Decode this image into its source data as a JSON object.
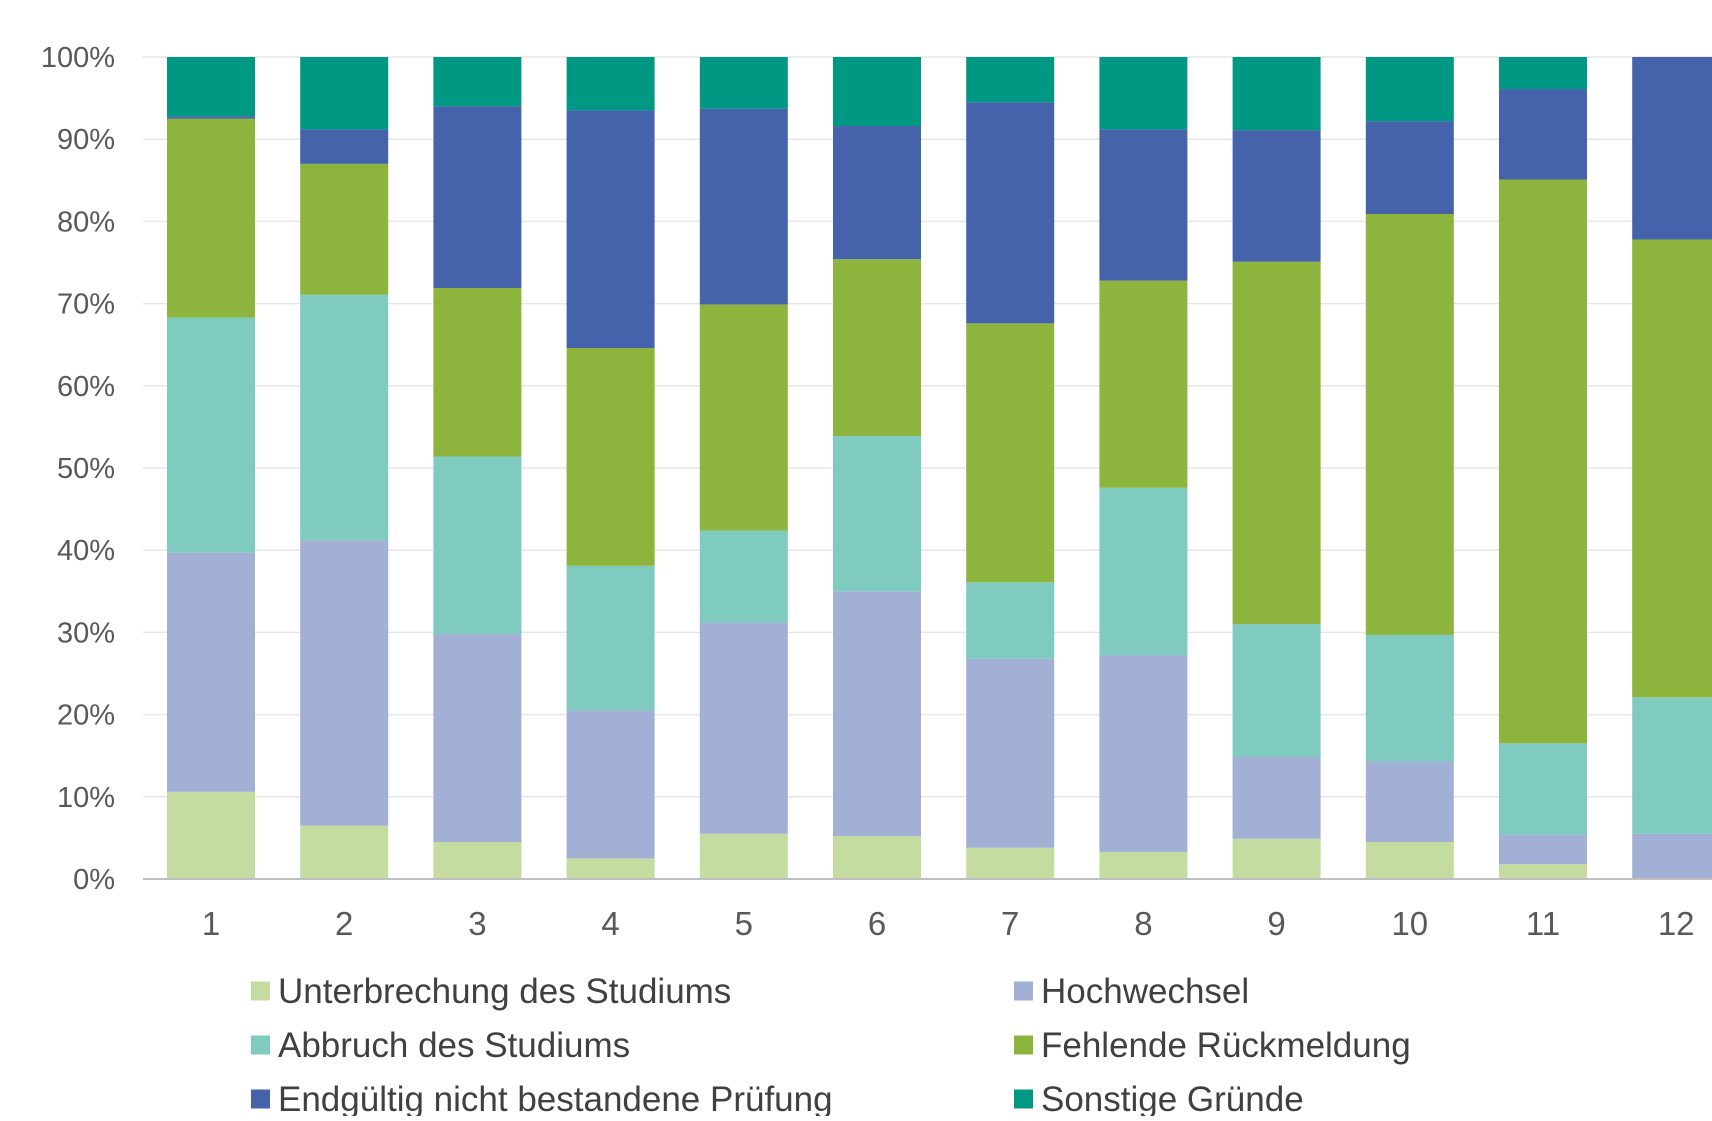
{
  "chart_data": {
    "type": "bar",
    "stacked": true,
    "percent_stacked": true,
    "title": "",
    "xlabel": "",
    "ylabel": "",
    "ylim": [
      0,
      100
    ],
    "y_tick_labels": [
      "0%",
      "10%",
      "20%",
      "30%",
      "40%",
      "50%",
      "60%",
      "70%",
      "80%",
      "90%",
      "100%"
    ],
    "grid": true,
    "legend_position": "bottom",
    "categories": [
      "1",
      "2",
      "3",
      "4",
      "5",
      "6",
      "7",
      "8",
      "9",
      "10",
      "11",
      "12"
    ],
    "series": [
      {
        "name": "Unterbrechung des Studiums",
        "color": "#c5dca0",
        "values": [
          10.6,
          6.5,
          4.5,
          2.5,
          5.5,
          5.2,
          3.8,
          3.3,
          4.9,
          4.5,
          1.8,
          0
        ]
      },
      {
        "name": "Hochwechsel",
        "color": "#a2b0d6",
        "values": [
          29.1,
          34.7,
          25.3,
          18.0,
          25.7,
          29.8,
          23.0,
          23.9,
          10.0,
          9.8,
          3.6,
          5.5
        ]
      },
      {
        "name": "Abbruch des Studiums",
        "color": "#7fcbbf",
        "values": [
          28.6,
          29.9,
          21.6,
          17.6,
          11.2,
          18.9,
          9.3,
          20.4,
          16.1,
          15.4,
          11.1,
          16.6
        ]
      },
      {
        "name": "Fehlende Rückmeldung",
        "color": "#8db43c",
        "values": [
          24.2,
          15.9,
          20.5,
          26.5,
          27.5,
          21.5,
          31.5,
          25.2,
          44.1,
          51.2,
          68.6,
          55.7
        ]
      },
      {
        "name": "Endgültig nicht bestandene Prüfung",
        "color": "#4563ab",
        "values": [
          0.3,
          4.2,
          22.1,
          28.9,
          23.8,
          16.2,
          26.9,
          18.4,
          16.0,
          11.3,
          11.0,
          22.2
        ]
      },
      {
        "name": "Sonstige Gründe",
        "color": "#009882",
        "values": [
          7.2,
          8.8,
          6.0,
          6.5,
          6.3,
          8.4,
          5.5,
          8.8,
          8.9,
          7.8,
          3.9,
          0
        ]
      }
    ],
    "legend_order": [
      0,
      1,
      2,
      3,
      4,
      5
    ]
  }
}
